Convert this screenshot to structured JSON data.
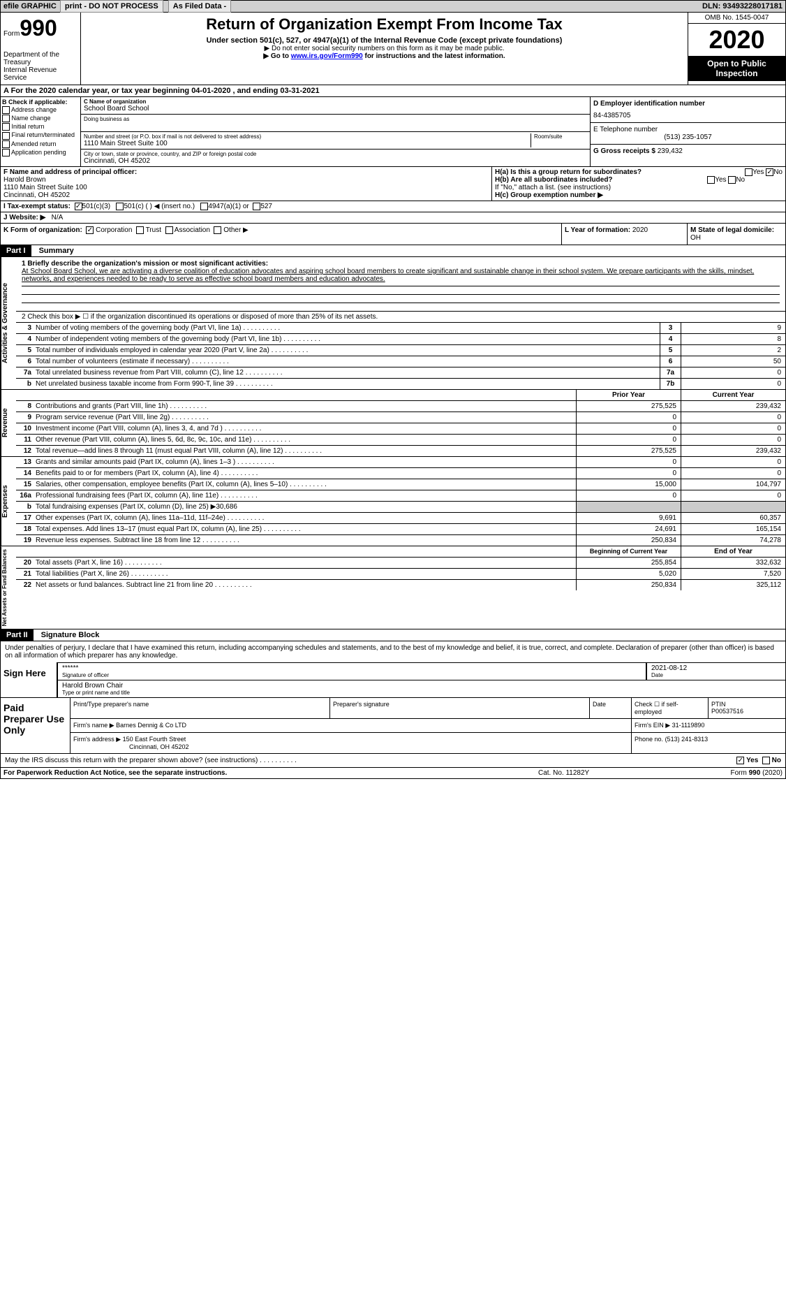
{
  "topbar": {
    "efile": "efile GRAPHIC",
    "print": "print - DO NOT PROCESS",
    "asfiled": "As Filed Data -",
    "dln": "DLN: 93493228017181"
  },
  "header": {
    "form_prefix": "Form",
    "form_number": "990",
    "dept": "Department of the Treasury",
    "irs": "Internal Revenue Service",
    "title": "Return of Organization Exempt From Income Tax",
    "subtitle": "Under section 501(c), 527, or 4947(a)(1) of the Internal Revenue Code (except private foundations)",
    "note1": "▶ Do not enter social security numbers on this form as it may be made public.",
    "note2_pre": "▶ Go to ",
    "note2_link": "www.irs.gov/Form990",
    "note2_post": " for instructions and the latest information.",
    "omb": "OMB No. 1545-0047",
    "year": "2020",
    "open": "Open to Public Inspection"
  },
  "rowA": "A   For the 2020 calendar year, or tax year beginning 04-01-2020   , and ending 03-31-2021",
  "colB": {
    "label": "B Check if applicable:",
    "items": [
      "Address change",
      "Name change",
      "Initial return",
      "Final return/terminated",
      "Amended return",
      "Application pending"
    ]
  },
  "colC": {
    "c_label": "C Name of organization",
    "org_name": "School Board School",
    "dba_label": "Doing business as",
    "addr_label": "Number and street (or P.O. box if mail is not delivered to street address)",
    "room_label": "Room/suite",
    "addr": "1110 Main Street Suite 100",
    "city_label": "City or town, state or province, country, and ZIP or foreign postal code",
    "city": "Cincinnati, OH  45202"
  },
  "colD": {
    "d_label": "D Employer identification number",
    "ein": "84-4385705",
    "e_label": "E Telephone number",
    "phone": "(513) 235-1057",
    "g_label": "G Gross receipts $",
    "g_val": "239,432"
  },
  "rowF": {
    "label": "F  Name and address of principal officer:",
    "name": "Harold Brown",
    "addr1": "1110 Main Street Suite 100",
    "addr2": "Cincinnati, OH  45202"
  },
  "rowH": {
    "ha": "H(a)  Is this a group return for subordinates?",
    "hb": "H(b)  Are all subordinates included?",
    "hb_note": "If \"No,\" attach a list. (see instructions)",
    "hc": "H(c)  Group exemption number ▶",
    "yes": "Yes",
    "no": "No"
  },
  "rowI": {
    "label": "I   Tax-exempt status:",
    "o1": "501(c)(3)",
    "o2": "501(c) (  ) ◀ (insert no.)",
    "o3": "4947(a)(1) or",
    "o4": "527"
  },
  "rowJ": {
    "label": "J   Website: ▶",
    "val": "N/A"
  },
  "rowK": {
    "label": "K Form of organization:",
    "o1": "Corporation",
    "o2": "Trust",
    "o3": "Association",
    "o4": "Other ▶"
  },
  "rowL": {
    "label": "L Year of formation:",
    "val": "2020"
  },
  "rowM": {
    "label": "M State of legal domicile:",
    "val": "OH"
  },
  "part1": {
    "hdr": "Part I",
    "title": "Summary",
    "line1_label": "1  Briefly describe the organization's mission or most significant activities:",
    "mission": "At School Board School, we are activating a diverse coalition of education advocates and aspiring school board members to create significant and sustainable change in their school system. We prepare participants with the skills, mindset, networks, and experiences needed to be ready to serve as effective school board members and education advocates.",
    "line2": "2   Check this box ▶ ☐ if the organization discontinued its operations or disposed of more than 25% of its net assets.",
    "vtab1": "Activities & Governance",
    "vtab2": "Revenue",
    "vtab3": "Expenses",
    "vtab4": "Net Assets or Fund Balances",
    "col_prior": "Prior Year",
    "col_current": "Current Year",
    "col_begin": "Beginning of Current Year",
    "col_end": "End of Year",
    "lines_gov": [
      {
        "n": "3",
        "d": "Number of voting members of the governing body (Part VI, line 1a)",
        "c": "3",
        "v": "9"
      },
      {
        "n": "4",
        "d": "Number of independent voting members of the governing body (Part VI, line 1b)",
        "c": "4",
        "v": "8"
      },
      {
        "n": "5",
        "d": "Total number of individuals employed in calendar year 2020 (Part V, line 2a)",
        "c": "5",
        "v": "2"
      },
      {
        "n": "6",
        "d": "Total number of volunteers (estimate if necessary)",
        "c": "6",
        "v": "50"
      },
      {
        "n": "7a",
        "d": "Total unrelated business revenue from Part VIII, column (C), line 12",
        "c": "7a",
        "v": "0"
      },
      {
        "n": "b",
        "d": "Net unrelated business taxable income from Form 990-T, line 39",
        "c": "7b",
        "v": "0"
      }
    ],
    "lines_rev": [
      {
        "n": "8",
        "d": "Contributions and grants (Part VIII, line 1h)",
        "p": "275,525",
        "c": "239,432"
      },
      {
        "n": "9",
        "d": "Program service revenue (Part VIII, line 2g)",
        "p": "0",
        "c": "0"
      },
      {
        "n": "10",
        "d": "Investment income (Part VIII, column (A), lines 3, 4, and 7d )",
        "p": "0",
        "c": "0"
      },
      {
        "n": "11",
        "d": "Other revenue (Part VIII, column (A), lines 5, 6d, 8c, 9c, 10c, and 11e)",
        "p": "0",
        "c": "0"
      },
      {
        "n": "12",
        "d": "Total revenue—add lines 8 through 11 (must equal Part VIII, column (A), line 12)",
        "p": "275,525",
        "c": "239,432"
      }
    ],
    "lines_exp": [
      {
        "n": "13",
        "d": "Grants and similar amounts paid (Part IX, column (A), lines 1–3 )",
        "p": "0",
        "c": "0"
      },
      {
        "n": "14",
        "d": "Benefits paid to or for members (Part IX, column (A), line 4)",
        "p": "0",
        "c": "0"
      },
      {
        "n": "15",
        "d": "Salaries, other compensation, employee benefits (Part IX, column (A), lines 5–10)",
        "p": "15,000",
        "c": "104,797"
      },
      {
        "n": "16a",
        "d": "Professional fundraising fees (Part IX, column (A), line 11e)",
        "p": "0",
        "c": "0"
      },
      {
        "n": "b",
        "d": "Total fundraising expenses (Part IX, column (D), line 25) ▶30,686",
        "p": "",
        "c": "",
        "noval": true
      },
      {
        "n": "17",
        "d": "Other expenses (Part IX, column (A), lines 11a–11d, 11f–24e)",
        "p": "9,691",
        "c": "60,357"
      },
      {
        "n": "18",
        "d": "Total expenses. Add lines 13–17 (must equal Part IX, column (A), line 25)",
        "p": "24,691",
        "c": "165,154"
      },
      {
        "n": "19",
        "d": "Revenue less expenses. Subtract line 18 from line 12",
        "p": "250,834",
        "c": "74,278"
      }
    ],
    "lines_net": [
      {
        "n": "20",
        "d": "Total assets (Part X, line 16)",
        "p": "255,854",
        "c": "332,632"
      },
      {
        "n": "21",
        "d": "Total liabilities (Part X, line 26)",
        "p": "5,020",
        "c": "7,520"
      },
      {
        "n": "22",
        "d": "Net assets or fund balances. Subtract line 21 from line 20",
        "p": "250,834",
        "c": "325,112"
      }
    ]
  },
  "part2": {
    "hdr": "Part II",
    "title": "Signature Block",
    "declaration": "Under penalties of perjury, I declare that I have examined this return, including accompanying schedules and statements, and to the best of my knowledge and belief, it is true, correct, and complete. Declaration of preparer (other than officer) is based on all information of which preparer has any knowledge.",
    "sign_here": "Sign Here",
    "stars": "******",
    "sig_officer": "Signature of officer",
    "date": "2021-08-12",
    "date_lbl": "Date",
    "name_title": "Harold Brown  Chair",
    "type_name": "Type or print name and title",
    "paid": "Paid Preparer Use Only",
    "prep_name_lbl": "Print/Type preparer's name",
    "prep_sig_lbl": "Preparer's signature",
    "check_self": "Check ☐ if self-employed",
    "ptin_lbl": "PTIN",
    "ptin": "P00537516",
    "firm_name_lbl": "Firm's name   ▶",
    "firm_name": "Barnes Dennig & Co LTD",
    "firm_ein_lbl": "Firm's EIN ▶",
    "firm_ein": "31-1119890",
    "firm_addr_lbl": "Firm's address ▶",
    "firm_addr1": "150 East Fourth Street",
    "firm_addr2": "Cincinnati, OH  45202",
    "phone_lbl": "Phone no.",
    "phone": "(513) 241-8313",
    "discuss": "May the IRS discuss this return with the preparer shown above? (see instructions)"
  },
  "footer": {
    "left": "For Paperwork Reduction Act Notice, see the separate instructions.",
    "mid": "Cat. No. 11282Y",
    "right": "Form 990 (2020)"
  }
}
